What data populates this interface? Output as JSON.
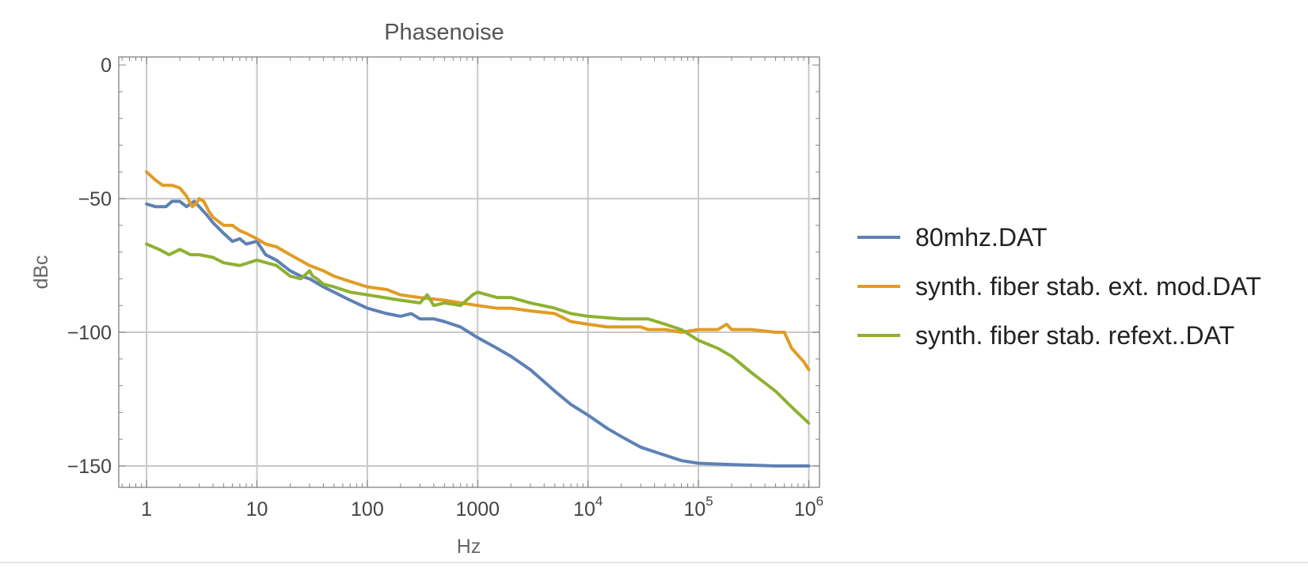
{
  "chart_data": {
    "type": "line",
    "title": "Phasenoise",
    "xlabel": "Hz",
    "ylabel": "dBc",
    "x_scale": "log",
    "xlim": [
      0.56,
      1250000
    ],
    "ylim": [
      -158,
      3
    ],
    "x_ticks": [
      {
        "value": 1,
        "label": "1"
      },
      {
        "value": 10,
        "label": "10"
      },
      {
        "value": 100,
        "label": "100"
      },
      {
        "value": 1000,
        "label": "1000"
      },
      {
        "value": 10000,
        "label": "10",
        "sup": "4"
      },
      {
        "value": 100000,
        "label": "10",
        "sup": "5"
      },
      {
        "value": 1000000,
        "label": "10",
        "sup": "6"
      }
    ],
    "y_ticks": [
      {
        "value": 0,
        "label": "0"
      },
      {
        "value": -50,
        "label": "−50"
      },
      {
        "value": -100,
        "label": "−100"
      },
      {
        "value": -150,
        "label": "−150"
      }
    ],
    "grid": true,
    "legend_position": "right",
    "series": [
      {
        "name": "80mhz.DAT",
        "color": "#5e81b5",
        "x": [
          1,
          1.2,
          1.5,
          1.7,
          2,
          2.3,
          2.7,
          3,
          3.5,
          4,
          5,
          6,
          7,
          8,
          10,
          12,
          15,
          20,
          25,
          30,
          40,
          50,
          70,
          100,
          150,
          200,
          250,
          300,
          400,
          500,
          700,
          1000,
          1500,
          2000,
          3000,
          5000,
          7000,
          10000,
          15000,
          20000,
          30000,
          50000,
          70000,
          100000,
          200000,
          500000,
          1000000
        ],
        "y": [
          -52,
          -53,
          -53,
          -51,
          -51,
          -53,
          -51,
          -53,
          -56,
          -59,
          -63,
          -66,
          -65,
          -67,
          -66,
          -71,
          -73,
          -77,
          -79,
          -80,
          -83,
          -85,
          -88,
          -91,
          -93,
          -94,
          -93,
          -95,
          -95,
          -96,
          -98,
          -102,
          -106,
          -109,
          -114,
          -122,
          -127,
          -131,
          -136,
          -139,
          -143,
          -146,
          -148,
          -149,
          -149.5,
          -150,
          -150
        ]
      },
      {
        "name": "synth. fiber stab. ext. mod.DAT",
        "color": "#e19c24",
        "x": [
          1,
          1.2,
          1.4,
          1.7,
          2,
          2.3,
          2.6,
          2.8,
          3,
          3.3,
          3.7,
          4,
          5,
          6,
          7,
          8,
          10,
          12,
          15,
          20,
          30,
          40,
          50,
          70,
          100,
          150,
          200,
          300,
          500,
          700,
          1000,
          1500,
          2000,
          3000,
          5000,
          7000,
          10000,
          15000,
          20000,
          30000,
          35000,
          50000,
          70000,
          100000,
          150000,
          180000,
          200000,
          300000,
          500000,
          600000,
          700000,
          900000,
          1000000
        ],
        "y": [
          -40,
          -43,
          -45,
          -45,
          -46,
          -49,
          -53,
          -52,
          -50,
          -51,
          -55,
          -57,
          -60,
          -60,
          -62,
          -63,
          -65,
          -67,
          -68,
          -71,
          -75,
          -77,
          -79,
          -81,
          -83,
          -84,
          -86,
          -87,
          -88,
          -89,
          -90,
          -91,
          -91,
          -92,
          -93,
          -96,
          -97,
          -98,
          -98,
          -98,
          -99,
          -99,
          -100,
          -99,
          -99,
          -97,
          -99,
          -99,
          -100,
          -100,
          -106,
          -111,
          -114
        ]
      },
      {
        "name": "synth. fiber stab. refext..DAT",
        "color": "#8fb131",
        "x": [
          1,
          1.3,
          1.6,
          2,
          2.5,
          3,
          4,
          5,
          7,
          10,
          15,
          20,
          25,
          30,
          32,
          35,
          40,
          50,
          70,
          100,
          200,
          300,
          350,
          400,
          500,
          700,
          900,
          1000,
          1500,
          2000,
          3000,
          5000,
          7000,
          10000,
          20000,
          30000,
          35000,
          50000,
          70000,
          100000,
          150000,
          200000,
          300000,
          500000,
          700000,
          1000000
        ],
        "y": [
          -67,
          -69,
          -71,
          -69,
          -71,
          -71,
          -72,
          -74,
          -75,
          -73,
          -75,
          -79,
          -80,
          -77,
          -79,
          -80,
          -82,
          -83,
          -85,
          -86,
          -88,
          -89,
          -86,
          -90,
          -89,
          -90,
          -86,
          -85,
          -87,
          -87,
          -89,
          -91,
          -93,
          -94,
          -95,
          -95,
          -95,
          -97,
          -99,
          -103,
          -106,
          -109,
          -115,
          -122,
          -128,
          -134
        ]
      }
    ]
  }
}
